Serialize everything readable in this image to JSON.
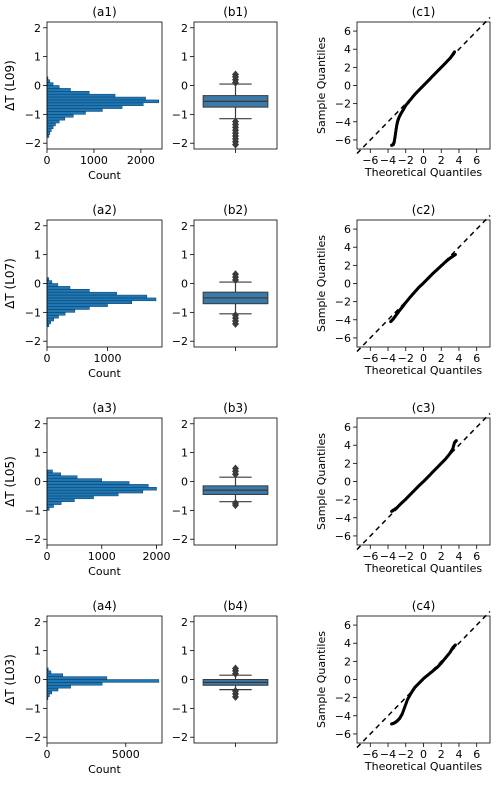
{
  "figure": {
    "hist_xlabel": "Count",
    "qq_xlabel": "Theoretical Quantiles",
    "qq_ylabel": "Sample Quantiles"
  },
  "chart_data": [
    {
      "type": "bar",
      "orientation": "horizontal",
      "panel": "(a1)",
      "ylabel": "ΔT (L09)",
      "xlabel": "Count",
      "ylim": [
        -2.2,
        2.2
      ],
      "xlim": [
        0,
        2450
      ],
      "yticks": [
        -2,
        -1,
        0,
        1,
        2
      ],
      "xticks": [
        0,
        1000,
        2000
      ],
      "bins": [
        -1.75,
        -1.65,
        -1.55,
        -1.45,
        -1.35,
        -1.25,
        -1.15,
        -1.05,
        -0.95,
        -0.85,
        -0.75,
        -0.65,
        -0.55,
        -0.45,
        -0.35,
        -0.25,
        -0.15,
        -0.05,
        0.05,
        0.15,
        0.25
      ],
      "values": [
        40,
        60,
        90,
        130,
        180,
        260,
        380,
        560,
        820,
        1180,
        1600,
        2050,
        2380,
        2100,
        1450,
        900,
        500,
        260,
        130,
        60,
        20
      ]
    },
    {
      "type": "box",
      "panel": "(b1)",
      "ylim": [
        -2.2,
        2.2
      ],
      "yticks": [
        -2,
        -1,
        0,
        1,
        2
      ],
      "q1": -0.75,
      "median": -0.55,
      "q3": -0.35,
      "whisker_low": -1.15,
      "whisker_high": 0.05,
      "fliers": [
        0.1,
        0.2,
        0.3,
        0.38,
        -1.25,
        -1.35,
        -1.45,
        -1.55,
        -1.65,
        -1.75,
        -1.85,
        -1.95,
        -2.05
      ]
    },
    {
      "type": "scatter",
      "panel": "(c1)",
      "xlabel": "Theoretical Quantiles",
      "ylabel": "Sample Quantiles",
      "xlim": [
        -7.5,
        7.5
      ],
      "ylim": [
        -7,
        7
      ],
      "xticks": [
        -6,
        -4,
        -2,
        0,
        2,
        4,
        6
      ],
      "yticks": [
        -6,
        -4,
        -2,
        0,
        2,
        4,
        6
      ],
      "points": [
        [
          -3.6,
          -6.6
        ],
        [
          -3.4,
          -6.5
        ],
        [
          -3.3,
          -6.2
        ],
        [
          -3.2,
          -5.6
        ],
        [
          -3.1,
          -4.9
        ],
        [
          -3.0,
          -4.3
        ],
        [
          -2.9,
          -3.9
        ],
        [
          -2.8,
          -3.6
        ],
        [
          -2.6,
          -3.2
        ],
        [
          -2.3,
          -2.7
        ],
        [
          -2.0,
          -2.2
        ],
        [
          -1.5,
          -1.6
        ],
        [
          -1.0,
          -1.0
        ],
        [
          -0.5,
          -0.5
        ],
        [
          0,
          0
        ],
        [
          0.5,
          0.5
        ],
        [
          1.0,
          1.0
        ],
        [
          1.5,
          1.5
        ],
        [
          2.0,
          2.0
        ],
        [
          2.5,
          2.5
        ],
        [
          3.0,
          3.0
        ],
        [
          3.3,
          3.4
        ],
        [
          3.5,
          3.7
        ]
      ]
    },
    {
      "type": "bar",
      "orientation": "horizontal",
      "panel": "(a2)",
      "ylabel": "ΔT (L07)",
      "xlabel": "Count",
      "ylim": [
        -2.2,
        2.2
      ],
      "xlim": [
        0,
        1900
      ],
      "yticks": [
        -2,
        -1,
        0,
        1,
        2
      ],
      "xticks": [
        0,
        1000
      ],
      "bins": [
        -1.45,
        -1.35,
        -1.25,
        -1.15,
        -1.05,
        -0.95,
        -0.85,
        -0.75,
        -0.65,
        -0.55,
        -0.45,
        -0.35,
        -0.25,
        -0.15,
        -0.05,
        0.05,
        0.15
      ],
      "values": [
        30,
        60,
        110,
        190,
        300,
        460,
        700,
        1000,
        1400,
        1800,
        1650,
        1150,
        700,
        380,
        180,
        80,
        30
      ]
    },
    {
      "type": "box",
      "panel": "(b2)",
      "ylim": [
        -2.2,
        2.2
      ],
      "yticks": [
        -2,
        -1,
        0,
        1,
        2
      ],
      "q1": -0.7,
      "median": -0.5,
      "q3": -0.3,
      "whisker_low": -1.05,
      "whisker_high": 0.05,
      "fliers": [
        0.12,
        0.22,
        0.32,
        -1.1,
        -1.2,
        -1.3,
        -1.4
      ]
    },
    {
      "type": "scatter",
      "panel": "(c2)",
      "xlabel": "Theoretical Quantiles",
      "ylabel": "Sample Quantiles",
      "xlim": [
        -7.5,
        7.5
      ],
      "ylim": [
        -7,
        7
      ],
      "xticks": [
        -6,
        -4,
        -2,
        0,
        2,
        4,
        6
      ],
      "yticks": [
        -6,
        -4,
        -2,
        0,
        2,
        4,
        6
      ],
      "points": [
        [
          -3.7,
          -4.2
        ],
        [
          -3.4,
          -3.9
        ],
        [
          -3.1,
          -3.5
        ],
        [
          -2.8,
          -3.1
        ],
        [
          -2.4,
          -2.6
        ],
        [
          -2.0,
          -2.1
        ],
        [
          -1.5,
          -1.5
        ],
        [
          -1.0,
          -0.95
        ],
        [
          -0.5,
          -0.4
        ],
        [
          0,
          0.05
        ],
        [
          0.5,
          0.55
        ],
        [
          1.0,
          1.05
        ],
        [
          1.5,
          1.5
        ],
        [
          2.0,
          1.95
        ],
        [
          2.5,
          2.4
        ],
        [
          3.0,
          2.8
        ],
        [
          3.3,
          3.0
        ],
        [
          3.6,
          3.2
        ]
      ]
    },
    {
      "type": "bar",
      "orientation": "horizontal",
      "panel": "(a3)",
      "ylabel": "ΔT (L05)",
      "xlabel": "Count",
      "ylim": [
        -2.2,
        2.2
      ],
      "xlim": [
        0,
        2100
      ],
      "yticks": [
        -2,
        -1,
        0,
        1,
        2
      ],
      "xticks": [
        0,
        1000,
        2000
      ],
      "bins": [
        -0.95,
        -0.85,
        -0.75,
        -0.65,
        -0.55,
        -0.45,
        -0.35,
        -0.25,
        -0.15,
        -0.05,
        0.05,
        0.15,
        0.25,
        0.35
      ],
      "values": [
        40,
        120,
        260,
        500,
        850,
        1300,
        1750,
        2000,
        1850,
        1500,
        1000,
        550,
        250,
        100
      ]
    },
    {
      "type": "box",
      "panel": "(b3)",
      "ylim": [
        -2.2,
        2.2
      ],
      "yticks": [
        -2,
        -1,
        0,
        1,
        2
      ],
      "q1": -0.45,
      "median": -0.3,
      "q3": -0.15,
      "whisker_low": -0.7,
      "whisker_high": 0.15,
      "fliers": [
        0.25,
        0.35,
        0.45,
        -0.75,
        -0.82
      ]
    },
    {
      "type": "scatter",
      "panel": "(c3)",
      "xlabel": "Theoretical Quantiles",
      "ylabel": "Sample Quantiles",
      "xlim": [
        -7.5,
        7.5
      ],
      "ylim": [
        -7,
        7
      ],
      "xticks": [
        -6,
        -4,
        -2,
        0,
        2,
        4,
        6
      ],
      "yticks": [
        -6,
        -4,
        -2,
        0,
        2,
        4,
        6
      ],
      "points": [
        [
          -3.6,
          -3.3
        ],
        [
          -3.3,
          -3.1
        ],
        [
          -3.0,
          -2.9
        ],
        [
          -2.5,
          -2.4
        ],
        [
          -2.0,
          -1.95
        ],
        [
          -1.5,
          -1.45
        ],
        [
          -1.0,
          -0.95
        ],
        [
          -0.5,
          -0.45
        ],
        [
          0,
          0
        ],
        [
          0.5,
          0.5
        ],
        [
          1.0,
          1.0
        ],
        [
          1.5,
          1.5
        ],
        [
          2.0,
          2.0
        ],
        [
          2.5,
          2.5
        ],
        [
          3.0,
          3.1
        ],
        [
          3.3,
          3.6
        ],
        [
          3.5,
          4.3
        ],
        [
          3.7,
          4.5
        ]
      ]
    },
    {
      "type": "bar",
      "orientation": "horizontal",
      "panel": "(a4)",
      "ylabel": "ΔT (L03)",
      "xlabel": "Count",
      "ylim": [
        -2.2,
        2.2
      ],
      "xlim": [
        0,
        7300
      ],
      "yticks": [
        -2,
        -1,
        0,
        1,
        2
      ],
      "xticks": [
        0,
        5000
      ],
      "bins": [
        -0.65,
        -0.55,
        -0.45,
        -0.35,
        -0.25,
        -0.15,
        -0.05,
        0.05,
        0.15,
        0.25,
        0.35
      ],
      "values": [
        60,
        150,
        300,
        700,
        1500,
        3500,
        7100,
        3800,
        1000,
        250,
        80
      ]
    },
    {
      "type": "box",
      "panel": "(b4)",
      "ylim": [
        -2.2,
        2.2
      ],
      "yticks": [
        -2,
        -1,
        0,
        1,
        2
      ],
      "q1": -0.2,
      "median": -0.1,
      "q3": 0.0,
      "whisker_low": -0.35,
      "whisker_high": 0.15,
      "fliers": [
        0.2,
        0.3,
        0.38,
        -0.4,
        -0.5,
        -0.6
      ]
    },
    {
      "type": "scatter",
      "panel": "(c4)",
      "xlabel": "Theoretical Quantiles",
      "ylabel": "Sample Quantiles",
      "xlim": [
        -7.5,
        7.5
      ],
      "ylim": [
        -7,
        7
      ],
      "xticks": [
        -6,
        -4,
        -2,
        0,
        2,
        4,
        6
      ],
      "yticks": [
        -6,
        -4,
        -2,
        0,
        2,
        4,
        6
      ],
      "points": [
        [
          -3.6,
          -4.9
        ],
        [
          -3.3,
          -4.8
        ],
        [
          -3.0,
          -4.6
        ],
        [
          -2.7,
          -4.3
        ],
        [
          -2.4,
          -3.8
        ],
        [
          -2.1,
          -3.0
        ],
        [
          -1.8,
          -2.2
        ],
        [
          -1.4,
          -1.5
        ],
        [
          -1.0,
          -0.9
        ],
        [
          -0.5,
          -0.4
        ],
        [
          0,
          0.1
        ],
        [
          0.5,
          0.5
        ],
        [
          1.0,
          0.9
        ],
        [
          1.5,
          1.3
        ],
        [
          2.0,
          1.8
        ],
        [
          2.5,
          2.4
        ],
        [
          3.0,
          3.0
        ],
        [
          3.3,
          3.5
        ],
        [
          3.6,
          3.8
        ]
      ]
    }
  ]
}
